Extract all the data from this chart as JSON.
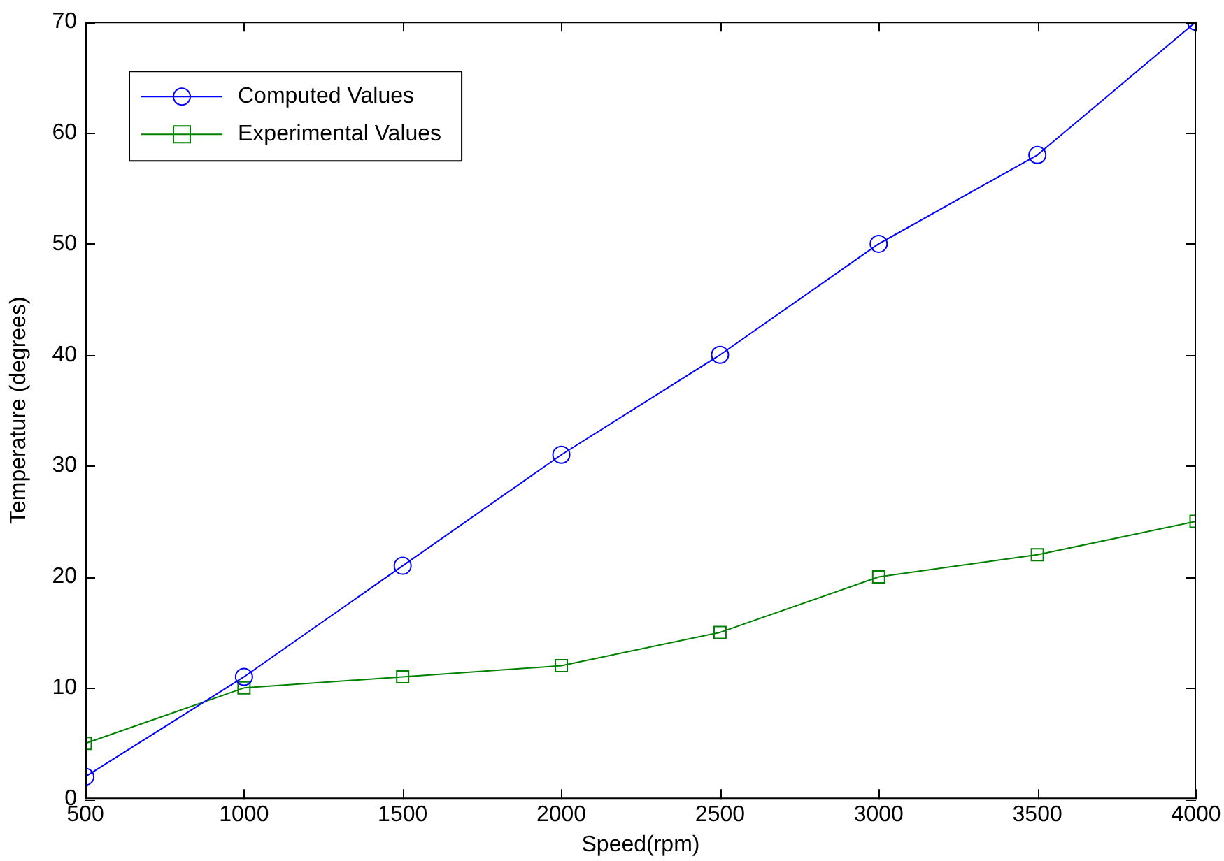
{
  "chart_data": {
    "type": "line",
    "xlabel": "Speed(rpm)",
    "ylabel": "Temperature (degrees)",
    "x": [
      500,
      1000,
      1500,
      2000,
      2500,
      3000,
      3500,
      4000
    ],
    "series": [
      {
        "name": "Computed Values",
        "color": "#0000ff",
        "marker": "circle",
        "values": [
          2,
          11,
          21,
          31,
          40,
          50,
          58,
          70
        ]
      },
      {
        "name": "Experimental Values",
        "color": "#008000",
        "marker": "square",
        "values": [
          5,
          10,
          11,
          12,
          15,
          20,
          22,
          25
        ]
      }
    ],
    "xlim": [
      500,
      4000
    ],
    "xticks": [
      500,
      1000,
      1500,
      2000,
      2500,
      3000,
      3500,
      4000
    ],
    "ylim": [
      0,
      70
    ],
    "yticks": [
      0,
      10,
      20,
      30,
      40,
      50,
      60,
      70
    ],
    "grid": false,
    "legend": "top left",
    "line_style": "solid"
  }
}
